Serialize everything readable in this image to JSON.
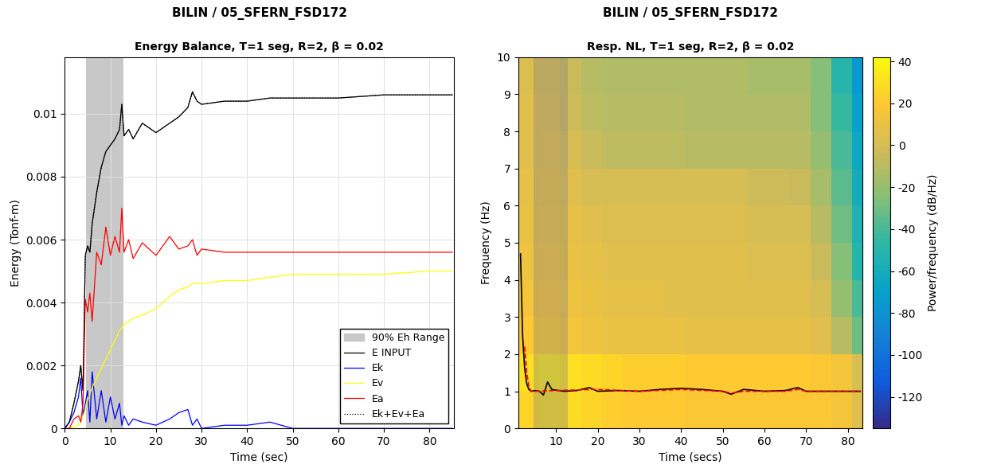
{
  "chart_data": [
    {
      "type": "line",
      "title": "BILIN / 05_SFERN_FSD172",
      "subtitle": "Energy Balance, T=1 seg, R=2, β = 0.02",
      "x_label": "Time (sec)",
      "y_label": "Energy (Tonf-m)",
      "x": [
        0,
        1,
        2,
        3,
        3.5,
        4,
        4.5,
        5,
        5.5,
        6,
        7,
        8,
        9,
        10,
        11,
        12,
        12.5,
        13,
        14,
        15,
        17,
        20,
        23,
        25,
        27,
        28,
        29,
        30,
        35,
        40,
        45,
        50,
        55,
        60,
        70,
        80,
        85
      ],
      "span": {
        "name": "90% Eh Range",
        "range": [
          4.6,
          12.8
        ],
        "color": "#c8c8c8"
      },
      "series": [
        {
          "name": "E INPUT",
          "color": "#000000",
          "line_style": "solid",
          "values": [
            0,
            0.0002,
            0.0008,
            0.0015,
            0.002,
            0.0012,
            0.0055,
            0.0058,
            0.0056,
            0.0065,
            0.0075,
            0.0083,
            0.0088,
            0.009,
            0.0092,
            0.0095,
            0.0103,
            0.0093,
            0.0095,
            0.0092,
            0.0097,
            0.0094,
            0.0097,
            0.0099,
            0.0102,
            0.0107,
            0.0104,
            0.0103,
            0.0104,
            0.0104,
            0.0105,
            0.0105,
            0.0105,
            0.0105,
            0.0106,
            0.0106,
            0.0106
          ]
        },
        {
          "name": "Ek",
          "color": "#0000ff",
          "line_style": "solid",
          "values": [
            0,
            0.0002,
            0.0005,
            0.001,
            0.0016,
            0.0004,
            0.0008,
            0.0012,
            0.0002,
            0.0018,
            0.0003,
            0.0012,
            0.0002,
            0.001,
            0.0003,
            0.0008,
            0.0001,
            0.0004,
            0.0001,
            0.0003,
            0.0002,
            0.0001,
            0.0003,
            0.0005,
            0.0006,
            0.0001,
            0.0003,
            0,
            0.0001,
            0.0001,
            0.0002,
            0,
            0,
            0,
            0,
            0,
            0
          ]
        },
        {
          "name": "Ev",
          "color": "#ffff00",
          "line_style": "solid",
          "values": [
            0,
            0,
            5e-05,
            0.0001,
            0.0002,
            0.0004,
            0.0006,
            0.0009,
            0.0011,
            0.0013,
            0.0016,
            0.0019,
            0.0022,
            0.0025,
            0.0028,
            0.0031,
            0.0032,
            0.0033,
            0.0034,
            0.0035,
            0.0036,
            0.0038,
            0.0042,
            0.0044,
            0.0045,
            0.0046,
            0.0046,
            0.0046,
            0.0047,
            0.0047,
            0.0048,
            0.0049,
            0.0049,
            0.0049,
            0.0049,
            0.005,
            0.005
          ]
        },
        {
          "name": "Ea",
          "color": "#ff0000",
          "line_style": "solid",
          "values": [
            0,
            0,
            0.0003,
            0.0004,
            0.0002,
            0.0008,
            0.0041,
            0.0037,
            0.0043,
            0.0034,
            0.0056,
            0.0052,
            0.0064,
            0.0055,
            0.0061,
            0.0056,
            0.007,
            0.0056,
            0.006,
            0.0054,
            0.0059,
            0.0055,
            0.0061,
            0.0057,
            0.0058,
            0.006,
            0.0055,
            0.0057,
            0.0056,
            0.0056,
            0.0056,
            0.0056,
            0.0056,
            0.0056,
            0.0056,
            0.0056,
            0.0056
          ]
        },
        {
          "name": "Ek+Ev+Ea",
          "color": "#000000",
          "line_style": "dotted",
          "values": [
            0,
            0.0002,
            0.0008,
            0.0015,
            0.002,
            0.0012,
            0.0055,
            0.0058,
            0.0056,
            0.0065,
            0.0075,
            0.0083,
            0.0088,
            0.009,
            0.0092,
            0.0095,
            0.0103,
            0.0093,
            0.0095,
            0.0092,
            0.0097,
            0.0094,
            0.0097,
            0.0099,
            0.0102,
            0.0107,
            0.0104,
            0.0103,
            0.0104,
            0.0104,
            0.0105,
            0.0105,
            0.0105,
            0.0105,
            0.0106,
            0.0106,
            0.0106
          ]
        }
      ],
      "xlim": [
        0,
        85.3
      ],
      "xticks": [
        0,
        10,
        20,
        30,
        40,
        50,
        60,
        70,
        80
      ],
      "ylim": [
        0,
        0.0118
      ],
      "yticks": [
        0,
        0.002,
        0.004,
        0.006,
        0.008,
        0.01
      ],
      "grid": true,
      "legend": "lower right"
    },
    {
      "type": "heatmap",
      "title": "BILIN / 05_SFERN_FSD172",
      "subtitle": "Resp. NL, T=1 seg, R=2, β = 0.02",
      "x_label": "Time (secs)",
      "y_label": "Frequency (Hz)",
      "x_edges": [
        1,
        6,
        11,
        16,
        21,
        26,
        31,
        36,
        41,
        46,
        51,
        56,
        61,
        66,
        71,
        76,
        81,
        83.5
      ],
      "y_edges": [
        0,
        1,
        2,
        3,
        4,
        5,
        6,
        7,
        8,
        9,
        10
      ],
      "cells": [
        [
          25,
          30,
          28,
          25,
          22,
          20,
          20,
          20,
          18,
          18,
          18,
          18,
          18,
          18,
          18,
          15,
          5
        ],
        [
          30,
          35,
          30,
          28,
          25,
          22,
          22,
          22,
          20,
          20,
          20,
          20,
          20,
          20,
          18,
          15,
          0
        ],
        [
          20,
          22,
          15,
          12,
          10,
          10,
          10,
          10,
          8,
          8,
          8,
          8,
          8,
          8,
          5,
          -10,
          -30
        ],
        [
          15,
          18,
          12,
          10,
          8,
          8,
          8,
          5,
          5,
          5,
          5,
          5,
          5,
          5,
          0,
          -20,
          -40
        ],
        [
          12,
          15,
          10,
          8,
          5,
          5,
          5,
          5,
          5,
          5,
          5,
          3,
          3,
          3,
          -5,
          -25,
          -50
        ],
        [
          10,
          12,
          8,
          5,
          3,
          3,
          3,
          3,
          3,
          3,
          3,
          0,
          0,
          0,
          -10,
          -30,
          -55
        ],
        [
          8,
          10,
          5,
          0,
          0,
          0,
          0,
          0,
          0,
          0,
          0,
          -3,
          -3,
          -5,
          -15,
          -35,
          -60
        ],
        [
          5,
          8,
          0,
          -5,
          -8,
          -8,
          -8,
          -8,
          -10,
          -10,
          -10,
          -10,
          -10,
          -10,
          -20,
          -40,
          -65
        ],
        [
          5,
          5,
          -3,
          -8,
          -10,
          -10,
          -10,
          -10,
          -12,
          -12,
          -12,
          -12,
          -12,
          -12,
          -25,
          -45,
          -70
        ],
        [
          3,
          3,
          -5,
          -10,
          -12,
          -12,
          -12,
          -12,
          -12,
          -12,
          -12,
          -15,
          -15,
          -15,
          -25,
          -50,
          -75
        ]
      ],
      "clim": [
        -135,
        42
      ],
      "cticks": [
        40,
        20,
        0,
        -20,
        -40,
        -60,
        -80,
        -100,
        -120
      ],
      "colorbar_label": "Power/frequency (dB/Hz)",
      "span": {
        "range": [
          4.6,
          12.8
        ],
        "color": "#808080"
      },
      "series": [
        {
          "color": "#000000",
          "line_style": "solid",
          "x": [
            1.5,
            2,
            2.5,
            3,
            3.5,
            4,
            5,
            6,
            7,
            8,
            9,
            10,
            12,
            15,
            18,
            20,
            25,
            30,
            35,
            40,
            45,
            50,
            52,
            55,
            60,
            65,
            68,
            70,
            75,
            80,
            83
          ],
          "values": [
            4.7,
            2.5,
            1.6,
            1.2,
            1.05,
            1.0,
            1.02,
            1.0,
            0.9,
            1.25,
            1.05,
            1.03,
            1.0,
            1.02,
            1.1,
            1.0,
            1.02,
            1.0,
            1.05,
            1.08,
            1.05,
            1.0,
            0.92,
            1.05,
            1.0,
            1.02,
            1.1,
            1.0,
            1.0,
            1.0,
            1.0
          ]
        },
        {
          "color": "#ff0000",
          "line_style": "dashed",
          "x": [
            2.5,
            3,
            3.5,
            4,
            5,
            10,
            20,
            30,
            40,
            50,
            52,
            55,
            60,
            65,
            68,
            70,
            80,
            83
          ],
          "values": [
            2.2,
            1.5,
            1.15,
            1.0,
            1.0,
            1.02,
            1.05,
            1.0,
            1.05,
            1.0,
            0.95,
            1.0,
            1.0,
            1.0,
            1.05,
            1.0,
            1.0,
            1.0
          ]
        }
      ],
      "xlim": [
        1,
        83.5
      ],
      "xticks": [
        10,
        20,
        30,
        40,
        50,
        60,
        70,
        80
      ],
      "ylim": [
        0,
        10
      ],
      "yticks": [
        0,
        1,
        2,
        3,
        4,
        5,
        6,
        7,
        8,
        9,
        10
      ]
    }
  ]
}
